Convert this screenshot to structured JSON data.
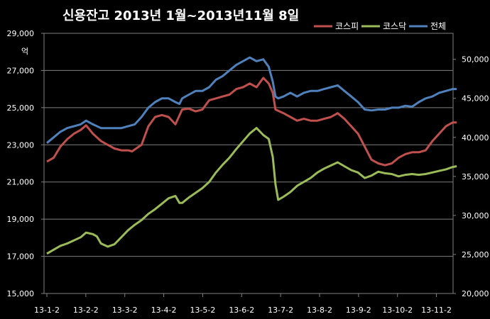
{
  "chart_data": {
    "type": "line",
    "title": "신용잔고 2013년 1월~2013년11월 8일",
    "y_left_unit": "억",
    "x_ticks": [
      "13-1-2",
      "13-2-2",
      "13-3-2",
      "13-4-2",
      "13-5-2",
      "13-6-2",
      "13-7-2",
      "13-8-2",
      "13-9-2",
      "13-10-2",
      "13-11-2"
    ],
    "y_left_ticks": [
      "15,000",
      "17,000",
      "19,000",
      "21,000",
      "23,000",
      "25,000",
      "27,000",
      "29,000"
    ],
    "y_right_ticks": [
      "20,000",
      "25,000",
      "30,000",
      "35,000",
      "40,000",
      "45,000",
      "50,000"
    ],
    "y_left_range": [
      15000,
      29000
    ],
    "y_right_range": [
      20000,
      53333
    ],
    "grid": true,
    "legend_position": "top-right",
    "series": [
      {
        "name": "코스피",
        "color": "#c0504d",
        "axis": "left",
        "points": [
          [
            0,
            22100
          ],
          [
            0.25,
            22300
          ],
          [
            0.5,
            22900
          ],
          [
            0.75,
            23300
          ],
          [
            1,
            23600
          ],
          [
            1.25,
            23800
          ],
          [
            1.45,
            24050
          ],
          [
            1.7,
            23600
          ],
          [
            2,
            23200
          ],
          [
            2.25,
            23000
          ],
          [
            2.5,
            22800
          ],
          [
            2.75,
            22700
          ],
          [
            3,
            22700
          ],
          [
            3.15,
            22650
          ],
          [
            3.3,
            22800
          ],
          [
            3.5,
            23000
          ],
          [
            3.75,
            24000
          ],
          [
            4,
            24500
          ],
          [
            4.25,
            24600
          ],
          [
            4.5,
            24500
          ],
          [
            4.75,
            24100
          ],
          [
            5,
            24900
          ],
          [
            5.25,
            24950
          ],
          [
            5.5,
            24800
          ],
          [
            5.75,
            24900
          ],
          [
            6,
            25400
          ],
          [
            6.25,
            25500
          ],
          [
            6.5,
            25600
          ],
          [
            6.75,
            25700
          ],
          [
            7,
            26000
          ],
          [
            7.25,
            26100
          ],
          [
            7.5,
            26300
          ],
          [
            7.75,
            26100
          ],
          [
            8,
            26600
          ],
          [
            8.2,
            26300
          ],
          [
            8.35,
            25800
          ],
          [
            8.45,
            24900
          ],
          [
            8.6,
            24800
          ],
          [
            8.75,
            24700
          ],
          [
            9,
            24500
          ],
          [
            9.25,
            24300
          ],
          [
            9.5,
            24400
          ],
          [
            9.75,
            24300
          ],
          [
            10,
            24300
          ],
          [
            10.25,
            24400
          ],
          [
            10.5,
            24500
          ],
          [
            10.75,
            24700
          ],
          [
            11,
            24400
          ],
          [
            11.25,
            24000
          ],
          [
            11.5,
            23600
          ],
          [
            11.75,
            22900
          ],
          [
            12,
            22200
          ],
          [
            12.25,
            22000
          ],
          [
            12.5,
            21900
          ],
          [
            12.75,
            22000
          ],
          [
            13,
            22300
          ],
          [
            13.25,
            22500
          ],
          [
            13.5,
            22600
          ],
          [
            13.75,
            22600
          ],
          [
            14,
            22700
          ],
          [
            14.25,
            23200
          ],
          [
            14.5,
            23600
          ],
          [
            14.75,
            24000
          ],
          [
            15,
            24200
          ],
          [
            15.15,
            24200
          ]
        ]
      },
      {
        "name": "코스닥",
        "color": "#9bbb59",
        "axis": "right",
        "points": [
          [
            0,
            25100
          ],
          [
            0.25,
            25600
          ],
          [
            0.5,
            26100
          ],
          [
            0.75,
            26400
          ],
          [
            1,
            26800
          ],
          [
            1.25,
            27200
          ],
          [
            1.45,
            27800
          ],
          [
            1.7,
            27600
          ],
          [
            1.85,
            27300
          ],
          [
            2,
            26400
          ],
          [
            2.25,
            26000
          ],
          [
            2.5,
            26300
          ],
          [
            2.75,
            27200
          ],
          [
            3,
            28100
          ],
          [
            3.25,
            28800
          ],
          [
            3.5,
            29400
          ],
          [
            3.75,
            30200
          ],
          [
            4,
            30800
          ],
          [
            4.25,
            31500
          ],
          [
            4.5,
            32200
          ],
          [
            4.75,
            32500
          ],
          [
            4.9,
            31600
          ],
          [
            5,
            31600
          ],
          [
            5.25,
            32300
          ],
          [
            5.5,
            32900
          ],
          [
            5.75,
            33500
          ],
          [
            6,
            34300
          ],
          [
            6.25,
            35500
          ],
          [
            6.5,
            36500
          ],
          [
            6.75,
            37400
          ],
          [
            7,
            38500
          ],
          [
            7.25,
            39500
          ],
          [
            7.5,
            40500
          ],
          [
            7.75,
            41200
          ],
          [
            8,
            40300
          ],
          [
            8.2,
            39800
          ],
          [
            8.35,
            37500
          ],
          [
            8.45,
            34000
          ],
          [
            8.55,
            32000
          ],
          [
            8.75,
            32400
          ],
          [
            9,
            33000
          ],
          [
            9.25,
            33800
          ],
          [
            9.5,
            34300
          ],
          [
            9.75,
            34800
          ],
          [
            10,
            35500
          ],
          [
            10.25,
            36000
          ],
          [
            10.5,
            36400
          ],
          [
            10.75,
            36800
          ],
          [
            11,
            36300
          ],
          [
            11.25,
            35800
          ],
          [
            11.5,
            35500
          ],
          [
            11.75,
            34800
          ],
          [
            12,
            35100
          ],
          [
            12.25,
            35600
          ],
          [
            12.5,
            35400
          ],
          [
            12.75,
            35300
          ],
          [
            13,
            35000
          ],
          [
            13.25,
            35200
          ],
          [
            13.5,
            35300
          ],
          [
            13.75,
            35200
          ],
          [
            14,
            35300
          ],
          [
            14.25,
            35500
          ],
          [
            14.5,
            35700
          ],
          [
            14.75,
            35900
          ],
          [
            15,
            36200
          ],
          [
            15.15,
            36300
          ]
        ]
      },
      {
        "name": "전체",
        "color": "#4f81bd",
        "axis": "left",
        "points": [
          [
            0,
            23100
          ],
          [
            0.25,
            23400
          ],
          [
            0.5,
            23700
          ],
          [
            0.75,
            23900
          ],
          [
            1,
            24000
          ],
          [
            1.25,
            24100
          ],
          [
            1.45,
            24300
          ],
          [
            1.7,
            24100
          ],
          [
            2,
            23900
          ],
          [
            2.25,
            23900
          ],
          [
            2.5,
            23900
          ],
          [
            2.75,
            23900
          ],
          [
            3,
            24000
          ],
          [
            3.25,
            24100
          ],
          [
            3.5,
            24500
          ],
          [
            3.75,
            25000
          ],
          [
            4,
            25300
          ],
          [
            4.25,
            25500
          ],
          [
            4.5,
            25500
          ],
          [
            4.75,
            25300
          ],
          [
            4.9,
            25200
          ],
          [
            5,
            25500
          ],
          [
            5.25,
            25700
          ],
          [
            5.5,
            25900
          ],
          [
            5.75,
            25900
          ],
          [
            6,
            26100
          ],
          [
            6.25,
            26500
          ],
          [
            6.5,
            26700
          ],
          [
            6.75,
            27000
          ],
          [
            7,
            27300
          ],
          [
            7.25,
            27500
          ],
          [
            7.5,
            27700
          ],
          [
            7.75,
            27500
          ],
          [
            8,
            27600
          ],
          [
            8.2,
            27200
          ],
          [
            8.35,
            26400
          ],
          [
            8.45,
            25600
          ],
          [
            8.55,
            25500
          ],
          [
            8.75,
            25600
          ],
          [
            9,
            25800
          ],
          [
            9.25,
            25600
          ],
          [
            9.5,
            25800
          ],
          [
            9.75,
            25900
          ],
          [
            10,
            25900
          ],
          [
            10.25,
            26000
          ],
          [
            10.5,
            26100
          ],
          [
            10.75,
            26200
          ],
          [
            11,
            25900
          ],
          [
            11.25,
            25600
          ],
          [
            11.5,
            25300
          ],
          [
            11.75,
            24900
          ],
          [
            12,
            24850
          ],
          [
            12.25,
            24900
          ],
          [
            12.5,
            24900
          ],
          [
            12.75,
            25000
          ],
          [
            13,
            25000
          ],
          [
            13.25,
            25100
          ],
          [
            13.5,
            25050
          ],
          [
            13.75,
            25300
          ],
          [
            14,
            25500
          ],
          [
            14.25,
            25600
          ],
          [
            14.5,
            25800
          ],
          [
            14.75,
            25900
          ],
          [
            15,
            26000
          ],
          [
            15.15,
            26000
          ]
        ]
      }
    ]
  }
}
